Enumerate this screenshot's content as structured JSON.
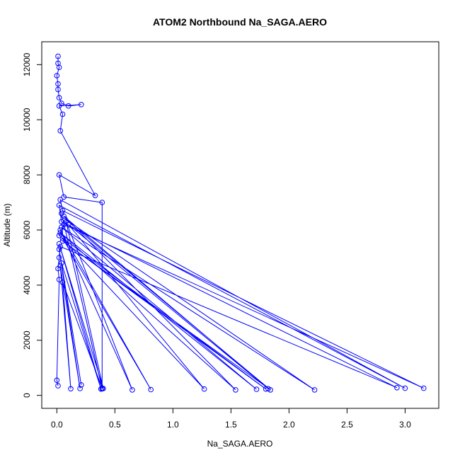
{
  "chart_data": {
    "type": "scatter",
    "title": "ATOM2 Northbound Na_SAGA.AERO",
    "xlabel": "Na_SAGA.AERO",
    "ylabel": "Altitude (m)",
    "xlim": [
      -0.13,
      3.29
    ],
    "ylim": [
      -470,
      12830
    ],
    "xticks": [
      "0.0",
      "0.5",
      "1.0",
      "1.5",
      "2.0",
      "2.5",
      "3.0"
    ],
    "xtick_values": [
      0,
      0.5,
      1.0,
      1.5,
      2.0,
      2.5,
      3.0
    ],
    "yticks": [
      "0",
      "2000",
      "4000",
      "6000",
      "8000",
      "10000",
      "12000"
    ],
    "ytick_values": [
      0,
      2000,
      4000,
      6000,
      8000,
      10000,
      12000
    ],
    "grid": false,
    "legend": "none",
    "color": "#0000ff",
    "series": [
      {
        "marker": "open-circle",
        "connected": true,
        "points": [
          [
            0.01,
            350
          ],
          [
            0.0,
            550
          ],
          [
            0.02,
            4200
          ],
          [
            0.01,
            4600
          ],
          [
            0.02,
            5000
          ],
          [
            0.03,
            5400
          ],
          [
            2.93,
            280
          ],
          [
            0.04,
            6300
          ],
          [
            0.02,
            6900
          ],
          [
            3.0,
            260
          ],
          [
            0.03,
            7100
          ],
          [
            0.05,
            6700
          ],
          [
            3.16,
            260
          ],
          [
            0.06,
            6200
          ],
          [
            0.02,
            5800
          ],
          [
            1.8,
            230
          ],
          [
            0.05,
            5600
          ],
          [
            1.84,
            200
          ],
          [
            0.07,
            6400
          ],
          [
            2.22,
            200
          ],
          [
            0.04,
            6100
          ],
          [
            1.72,
            220
          ],
          [
            0.03,
            5900
          ],
          [
            1.54,
            200
          ],
          [
            0.06,
            6500
          ],
          [
            1.82,
            240
          ],
          [
            0.1,
            6200
          ],
          [
            1.27,
            230
          ],
          [
            0.05,
            5700
          ],
          [
            0.81,
            210
          ],
          [
            0.03,
            6000
          ],
          [
            0.65,
            200
          ],
          [
            0.08,
            6300
          ],
          [
            0.4,
            250
          ],
          [
            0.02,
            5500
          ],
          [
            0.38,
            230
          ],
          [
            0.04,
            4800
          ],
          [
            0.21,
            380
          ],
          [
            0.02,
            5300
          ],
          [
            0.2,
            250
          ],
          [
            0.03,
            4700
          ],
          [
            0.12,
            240
          ],
          [
            0.05,
            4100
          ],
          [
            0.39,
            260
          ],
          [
            0.04,
            6600
          ],
          [
            0.39,
            240
          ],
          [
            0.39,
            7000
          ],
          [
            0.06,
            7200
          ],
          [
            0.02,
            8000
          ],
          [
            0.33,
            7250
          ],
          [
            0.03,
            9600
          ],
          [
            0.05,
            10200
          ],
          [
            0.02,
            10500
          ],
          [
            0.21,
            10550
          ],
          [
            0.1,
            10500
          ],
          [
            0.04,
            10600
          ],
          [
            0.02,
            10800
          ],
          [
            0.01,
            11100
          ],
          [
            0.01,
            11300
          ],
          [
            0.0,
            11600
          ],
          [
            0.02,
            11900
          ],
          [
            0.01,
            12050
          ],
          [
            0.01,
            12300
          ]
        ]
      }
    ]
  }
}
